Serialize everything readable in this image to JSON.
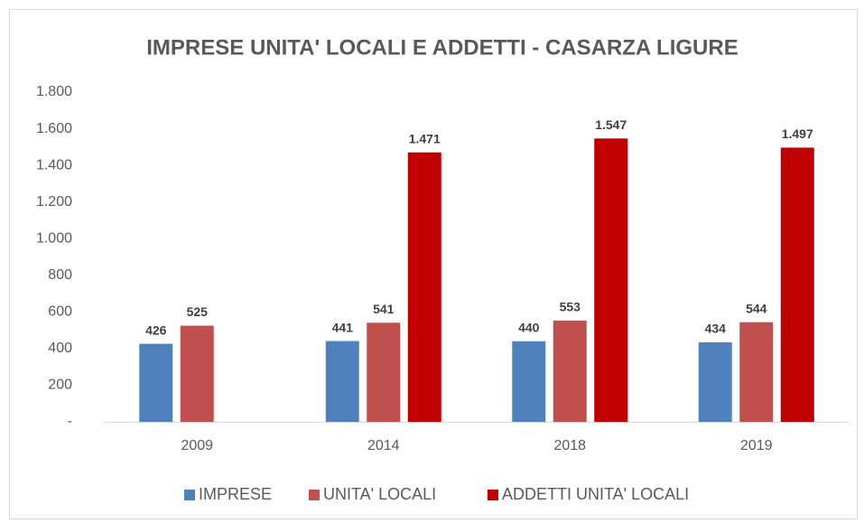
{
  "chart_data": {
    "type": "bar",
    "title": "IMPRESE UNITA' LOCALI E ADDETTI - CASARZA LIGURE",
    "categories": [
      "2009",
      "2014",
      "2018",
      "2019"
    ],
    "series": [
      {
        "name": "IMPRESE",
        "color": "#4f81bd",
        "values": [
          426,
          441,
          440,
          434
        ]
      },
      {
        "name": "UNITA' LOCALI",
        "color": "#c0504d",
        "values": [
          525,
          541,
          553,
          544
        ]
      },
      {
        "name": "ADDETTI UNITA' LOCALI",
        "color": "#c00000",
        "values": [
          null,
          1471,
          1547,
          1497
        ],
        "value_labels": [
          null,
          "1.471",
          "1.547",
          "1.497"
        ]
      }
    ],
    "ylim": [
      0,
      1800
    ],
    "yticks": [
      {
        "value": 0,
        "label": "-"
      },
      200,
      400,
      600,
      800,
      {
        "value": 1000,
        "label": "1.000"
      },
      {
        "value": 1200,
        "label": "1.200"
      },
      {
        "value": 1400,
        "label": "1.400"
      },
      {
        "value": 1600,
        "label": "1.600"
      },
      {
        "value": 1800,
        "label": "1.800"
      }
    ],
    "grid": false,
    "legend": "bottom"
  }
}
